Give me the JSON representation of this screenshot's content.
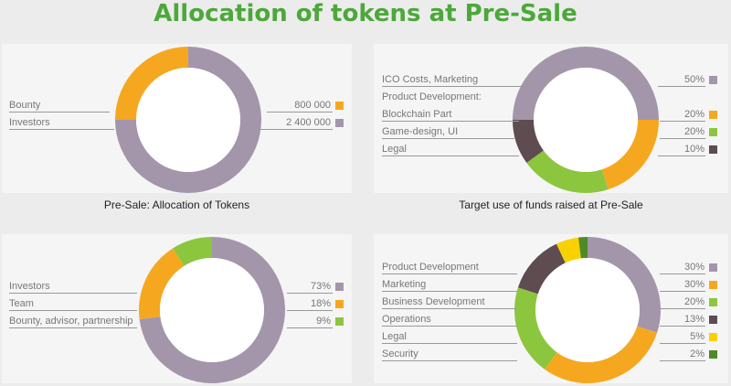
{
  "page_title": "Allocation of tokens at Pre-Sale",
  "colors": {
    "orange": "#f5a81f",
    "purple": "#a396aa",
    "green": "#8cc63e",
    "brown": "#5e4c50",
    "yellow": "#f8d200",
    "darkgreen": "#4f8a27"
  },
  "chart_data": [
    {
      "type": "pie",
      "title": "Pre-Sale: Allocation of Tokens",
      "categories": [
        "Bounty",
        "Investors"
      ],
      "values": [
        800000,
        2400000
      ],
      "value_labels": [
        "800 000",
        "2 400 000"
      ],
      "colors": [
        "#f5a81f",
        "#a396aa"
      ],
      "legend": "left-right"
    },
    {
      "type": "pie",
      "title": "Target use of funds raised at Pre-Sale",
      "categories": [
        "ICO Costs, Marketing",
        "Blockchain Part",
        "Game-design, UI",
        "Legal"
      ],
      "group_label": "Product Development:",
      "values": [
        50,
        20,
        20,
        10
      ],
      "value_labels": [
        "50%",
        "20%",
        "20%",
        "10%"
      ],
      "colors": [
        "#a396aa",
        "#f5a81f",
        "#8cc63e",
        "#5e4c50"
      ],
      "legend": "left-right"
    },
    {
      "type": "pie",
      "title": "",
      "categories": [
        "Investors",
        "Team",
        "Bounty, advisor, partnership"
      ],
      "values": [
        73,
        18,
        9
      ],
      "value_labels": [
        "73%",
        "18%",
        "9%"
      ],
      "colors": [
        "#a396aa",
        "#f5a81f",
        "#8cc63e"
      ],
      "legend": "left-right"
    },
    {
      "type": "pie",
      "title": "",
      "categories": [
        "Product Development",
        "Marketing",
        "Business Development",
        "Operations",
        "Legal",
        "Security"
      ],
      "values": [
        30,
        30,
        20,
        13,
        5,
        2
      ],
      "value_labels": [
        "30%",
        "30%",
        "20%",
        "13%",
        "5%",
        "2%"
      ],
      "colors": [
        "#a396aa",
        "#f5a81f",
        "#8cc63e",
        "#5e4c50",
        "#f8d200",
        "#4f8a27"
      ],
      "legend": "left-right"
    }
  ]
}
